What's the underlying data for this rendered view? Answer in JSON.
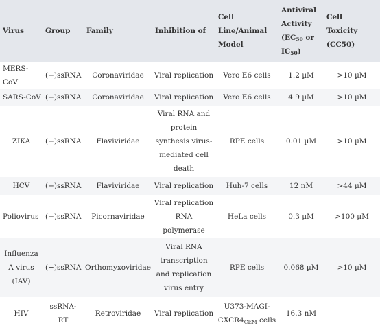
{
  "headers": {
    "virus": "Virus",
    "group": "Group",
    "family": "Family",
    "inhibition": "Inhibition of",
    "cell_line_1": "Cell",
    "cell_line_2": "Line/Animal",
    "cell_line_3": "Model",
    "activity_1": "Antiviral",
    "activity_2": "Activity",
    "activity_3a": "(EC",
    "activity_3_sub": "50",
    "activity_3b": " or",
    "activity_4a": "IC",
    "activity_4_sub": "50",
    "activity_4b": ")",
    "toxicity_1": "Cell",
    "toxicity_2": "Toxicity",
    "toxicity_3": "(CC50)"
  },
  "rows": [
    {
      "virus": "MERS-CoV",
      "group": "(+)ssRNA",
      "family": "Coronaviridae",
      "inhibition": "Viral replication",
      "cell_line": "Vero E6 cells",
      "activity": "1.2 µM",
      "toxicity": ">10 µM"
    },
    {
      "virus": "SARS-CoV",
      "group": "(+)ssRNA",
      "family": "Coronaviridae",
      "inhibition": "Viral replication",
      "cell_line": "Vero E6 cells",
      "activity": "4.9 µM",
      "toxicity": ">10 µM"
    },
    {
      "virus": "ZIKA",
      "group": "(+)ssRNA",
      "family": "Flaviviridae",
      "inhibition_lines": [
        "Viral RNA and",
        "protein",
        "synthesis virus-",
        "mediated cell",
        "death"
      ],
      "cell_line": "RPE cells",
      "activity": "0.01 µM",
      "toxicity": ">10 µM"
    },
    {
      "virus": "HCV",
      "group": "(+)ssRNA",
      "family": "Flaviviridae",
      "inhibition": "Viral replication",
      "cell_line": "Huh-7 cells",
      "activity": "12 nM",
      "toxicity": ">44 µM"
    },
    {
      "virus": "Poliovirus",
      "group": "(+)ssRNA",
      "family": "Picornaviridae",
      "inhibition_lines": [
        "Viral replication",
        "RNA",
        "polymerase"
      ],
      "cell_line": "HeLa cells",
      "activity": "0.3 µM",
      "toxicity": ">100 µM"
    },
    {
      "virus_lines": [
        "Influenza",
        "A virus",
        "(IAV)"
      ],
      "group": "(−)ssRNA",
      "family": "Orthomyxoviridae",
      "inhibition_lines": [
        "Viral RNA",
        "transcription",
        "and replication",
        "virus entry"
      ],
      "cell_line": "RPE cells",
      "activity": "0.068 µM",
      "toxicity": ">10 µM"
    },
    {
      "virus": "HIV",
      "group_lines": [
        "ssRNA-",
        "RT"
      ],
      "family": "Retroviridae",
      "inhibition": "Viral replication",
      "cell_line_1": "U373-MAGI-",
      "cell_line_2a": "CXCR4",
      "cell_line_2_sub": "CEM",
      "cell_line_2b": " cells",
      "activity": "16.3 nM",
      "toxicity": ""
    }
  ]
}
